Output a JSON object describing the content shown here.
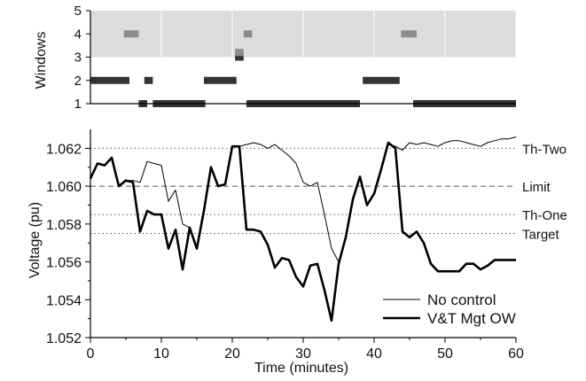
{
  "chart_data": [
    {
      "type": "timeline",
      "ylabel": "Windows",
      "ylim": [
        1,
        5
      ],
      "yticks": [
        1,
        2,
        3,
        4,
        5
      ],
      "shaded_band": [
        3,
        5
      ],
      "colors": {
        "band": "#dcdcdc",
        "light_segments": "#8c8c8c",
        "dark_segments": "#333333"
      },
      "segments": [
        {
          "window": 1,
          "start": 6.8,
          "end": 8.0,
          "shade": "dark"
        },
        {
          "window": 1,
          "start": 8.8,
          "end": 16.2,
          "shade": "dark"
        },
        {
          "window": 1,
          "start": 22.0,
          "end": 38.0,
          "shade": "dark"
        },
        {
          "window": 1,
          "start": 45.5,
          "end": 63.0,
          "shade": "dark"
        },
        {
          "window": 2,
          "start": 0.0,
          "end": 5.5,
          "shade": "dark"
        },
        {
          "window": 2,
          "start": 7.6,
          "end": 8.8,
          "shade": "dark"
        },
        {
          "window": 2,
          "start": 16.0,
          "end": 20.6,
          "shade": "dark"
        },
        {
          "window": 2,
          "start": 38.4,
          "end": 43.6,
          "shade": "dark"
        },
        {
          "window": 3,
          "start": 20.4,
          "end": 21.6,
          "shade": "dark"
        },
        {
          "window": 3.2,
          "start": 20.4,
          "end": 21.6,
          "shade": "light"
        },
        {
          "window": 4,
          "start": 4.7,
          "end": 6.8,
          "shade": "light"
        },
        {
          "window": 4,
          "start": 21.6,
          "end": 22.8,
          "shade": "light"
        },
        {
          "window": 4,
          "start": 43.8,
          "end": 46.0,
          "shade": "light"
        }
      ]
    },
    {
      "type": "line",
      "xlabel": "Time (minutes)",
      "ylabel": "Voltage (pu)",
      "xlim": [
        0,
        60
      ],
      "ylim": [
        1.052,
        1.063
      ],
      "xticks": [
        0,
        10,
        20,
        30,
        40,
        50,
        60
      ],
      "yticks": [
        "1.052",
        "1.054",
        "1.056",
        "1.058",
        "1.060",
        "1.062"
      ],
      "legend_position": "bottom-right",
      "reference_lines": [
        {
          "label": "Th-Two",
          "value": 1.062,
          "style": "dotted"
        },
        {
          "label": "Limit",
          "value": 1.06,
          "style": "dashed"
        },
        {
          "label": "Th-One",
          "value": 1.0585,
          "style": "dotted"
        },
        {
          "label": "Target",
          "value": 1.0575,
          "style": "dotted"
        }
      ],
      "series": [
        {
          "name": "No control",
          "line_width": 1,
          "x": [
            0,
            1,
            2,
            3,
            4,
            5,
            6,
            7,
            8,
            9,
            10,
            11,
            12,
            13,
            14,
            15,
            16,
            17,
            18,
            19,
            20,
            21,
            22,
            23,
            24,
            25,
            26,
            27,
            28,
            29,
            30,
            31,
            32,
            33,
            34,
            35,
            36,
            37,
            38,
            39,
            40,
            41,
            42,
            43,
            44,
            45,
            46,
            47,
            48,
            49,
            50,
            51,
            52,
            53,
            54,
            55,
            56,
            57,
            58,
            59,
            60
          ],
          "y": [
            1.0604,
            1.0612,
            1.0611,
            1.0615,
            1.06,
            1.0603,
            1.0603,
            1.0602,
            1.0613,
            1.0612,
            1.0611,
            1.0592,
            1.0598,
            1.058,
            1.0578,
            1.0568,
            1.0585,
            1.061,
            1.06,
            1.0601,
            1.0621,
            1.0621,
            1.0622,
            1.0623,
            1.0622,
            1.062,
            1.0622,
            1.0619,
            1.0616,
            1.0612,
            1.0602,
            1.06,
            1.0602,
            1.0585,
            1.0567,
            1.056,
            1.0573,
            1.0593,
            1.0605,
            1.059,
            1.0596,
            1.0609,
            1.0622,
            1.0621,
            1.0619,
            1.0623,
            1.0622,
            1.0623,
            1.0622,
            1.0621,
            1.0623,
            1.0624,
            1.0624,
            1.0623,
            1.0622,
            1.0621,
            1.0623,
            1.0624,
            1.0625,
            1.0625,
            1.0626
          ]
        },
        {
          "name": "V&T Mgt OW",
          "line_width": 2.6,
          "x": [
            0,
            1,
            2,
            3,
            4,
            5,
            6,
            7,
            8,
            9,
            10,
            11,
            12,
            13,
            14,
            15,
            16,
            17,
            18,
            19,
            20,
            21,
            22,
            23,
            24,
            25,
            26,
            27,
            28,
            29,
            30,
            31,
            32,
            33,
            34,
            35,
            36,
            37,
            38,
            39,
            40,
            41,
            42,
            43,
            44,
            45,
            46,
            47,
            48,
            49,
            50,
            51,
            52,
            53,
            54,
            55,
            56,
            57,
            58,
            59,
            60
          ],
          "y": [
            1.0604,
            1.0612,
            1.0611,
            1.0615,
            1.06,
            1.0603,
            1.0602,
            1.0576,
            1.0587,
            1.0585,
            1.0585,
            1.0567,
            1.0577,
            1.0556,
            1.0578,
            1.0567,
            1.0587,
            1.061,
            1.06,
            1.0601,
            1.0621,
            1.0621,
            1.0577,
            1.0577,
            1.0576,
            1.0569,
            1.0557,
            1.0562,
            1.0561,
            1.0552,
            1.0547,
            1.0558,
            1.0559,
            1.0545,
            1.0529,
            1.0559,
            1.0573,
            1.0593,
            1.0605,
            1.059,
            1.0596,
            1.0609,
            1.0623,
            1.062,
            1.0576,
            1.0573,
            1.0576,
            1.057,
            1.0559,
            1.0555,
            1.0555,
            1.0555,
            1.0555,
            1.0559,
            1.0559,
            1.0556,
            1.0558,
            1.0561,
            1.0561,
            1.0561,
            1.0561
          ]
        }
      ]
    }
  ]
}
